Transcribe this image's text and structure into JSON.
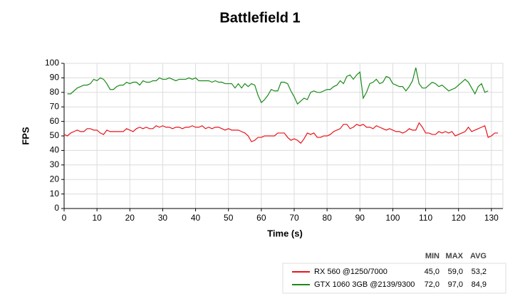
{
  "chart_data": {
    "type": "line",
    "title": "Battlefield 1",
    "x_label": "Time (s)",
    "y_label": "FPS",
    "xlim": [
      0,
      133.5
    ],
    "xticks": [
      0,
      10,
      20,
      30,
      40,
      50,
      60,
      70,
      80,
      90,
      100,
      110,
      120,
      130
    ],
    "ylim": [
      0,
      100
    ],
    "yticks": [
      0,
      10,
      20,
      30,
      40,
      50,
      60,
      70,
      80,
      90,
      100
    ],
    "grid": true,
    "stat_headers": [
      "MIN",
      "MAX",
      "AVG"
    ],
    "series": [
      {
        "name": "RX 560 @1250/7000",
        "color": "#e8141c",
        "stats": [
          "45,0",
          "59,0",
          "53,2"
        ],
        "x": [
          0,
          1,
          2,
          3,
          4,
          5,
          6,
          7,
          8,
          9,
          10,
          11,
          12,
          13,
          14,
          15,
          16,
          17,
          18,
          19,
          20,
          21,
          22,
          23,
          24,
          25,
          26,
          27,
          28,
          29,
          30,
          31,
          32,
          33,
          34,
          35,
          36,
          37,
          38,
          39,
          40,
          41,
          42,
          43,
          44,
          45,
          46,
          47,
          48,
          49,
          50,
          51,
          52,
          53,
          54,
          55,
          56,
          57,
          58,
          59,
          60,
          61,
          62,
          63,
          64,
          65,
          66,
          67,
          68,
          69,
          70,
          71,
          72,
          73,
          74,
          75,
          76,
          77,
          78,
          79,
          80,
          81,
          82,
          83,
          84,
          85,
          86,
          87,
          88,
          89,
          90,
          91,
          92,
          93,
          94,
          95,
          96,
          97,
          98,
          99,
          100,
          101,
          102,
          103,
          104,
          105,
          106,
          107,
          108,
          109,
          110,
          111,
          112,
          113,
          114,
          115,
          116,
          117,
          118,
          119,
          120,
          121,
          122,
          123,
          124,
          125,
          126,
          127,
          128,
          129,
          130,
          131,
          132
        ],
        "values": [
          51,
          50,
          52,
          53,
          54,
          53,
          53,
          55,
          55,
          54,
          54,
          52,
          51,
          54,
          53,
          53,
          53,
          53,
          53,
          55,
          54,
          53,
          55,
          56,
          55,
          56,
          55,
          55,
          57,
          56,
          57,
          56,
          56,
          55,
          56,
          56,
          55,
          56,
          56,
          57,
          56,
          56,
          57,
          55,
          56,
          55,
          56,
          56,
          55,
          54,
          55,
          54,
          54,
          54,
          53,
          52,
          50,
          46,
          47,
          49,
          49,
          50,
          50,
          50,
          50,
          52,
          52,
          52,
          49,
          47,
          48,
          47,
          45,
          48,
          52,
          51,
          52,
          49,
          49,
          50,
          50,
          51,
          53,
          54,
          55,
          58,
          58,
          55,
          56,
          58,
          57,
          58,
          56,
          56,
          55,
          57,
          56,
          55,
          54,
          55,
          54,
          53,
          53,
          52,
          53,
          55,
          54,
          54,
          59,
          56,
          52,
          52,
          51,
          51,
          53,
          52,
          53,
          52,
          53,
          50,
          51,
          52,
          53,
          56,
          53,
          54,
          55,
          56,
          57,
          49,
          50,
          52,
          52
        ]
      },
      {
        "name": "GTX 1060 3GB @2139/9300",
        "color": "#1a8a1a",
        "stats": [
          "72,0",
          "97,0",
          "84,9"
        ],
        "x": [
          1,
          2,
          3,
          4,
          5,
          6,
          7,
          8,
          9,
          10,
          11,
          12,
          13,
          14,
          15,
          16,
          17,
          18,
          19,
          20,
          21,
          22,
          23,
          24,
          25,
          26,
          27,
          28,
          29,
          30,
          31,
          32,
          33,
          34,
          35,
          36,
          37,
          38,
          39,
          40,
          41,
          42,
          43,
          44,
          45,
          46,
          47,
          48,
          49,
          50,
          51,
          52,
          53,
          54,
          55,
          56,
          57,
          58,
          59,
          60,
          61,
          62,
          63,
          64,
          65,
          66,
          67,
          68,
          69,
          70,
          71,
          72,
          73,
          74,
          75,
          76,
          77,
          78,
          79,
          80,
          81,
          82,
          83,
          84,
          85,
          86,
          87,
          88,
          89,
          90,
          91,
          92,
          93,
          94,
          95,
          96,
          97,
          98,
          99,
          100,
          101,
          102,
          103,
          104,
          105,
          106,
          107,
          108,
          109,
          110,
          111,
          112,
          113,
          114,
          115,
          116,
          117,
          118,
          119,
          120,
          121,
          122,
          123,
          124,
          125,
          126,
          127,
          128,
          129
        ],
        "values": [
          79,
          79,
          81,
          83,
          84,
          85,
          85,
          86,
          89,
          88,
          90,
          89,
          86,
          82,
          82,
          84,
          85,
          85,
          87,
          86,
          87,
          87,
          85,
          88,
          87,
          87,
          88,
          88,
          90,
          89,
          89,
          90,
          89,
          88,
          89,
          89,
          89,
          90,
          89,
          90,
          88,
          88,
          88,
          88,
          87,
          88,
          87,
          87,
          86,
          86,
          86,
          83,
          86,
          83,
          86,
          84,
          86,
          85,
          78,
          73,
          75,
          78,
          82,
          81,
          81,
          87,
          87,
          86,
          81,
          77,
          72,
          74,
          76,
          75,
          80,
          81,
          80,
          80,
          81,
          82,
          82,
          84,
          85,
          88,
          86,
          91,
          92,
          89,
          92,
          94,
          76,
          80,
          86,
          87,
          89,
          86,
          87,
          91,
          90,
          86,
          85,
          84,
          84,
          81,
          84,
          88,
          97,
          86,
          83,
          83,
          85,
          87,
          86,
          84,
          85,
          83,
          81,
          82,
          83,
          85,
          87,
          89,
          87,
          83,
          79,
          84,
          86,
          80,
          81
        ]
      }
    ]
  }
}
